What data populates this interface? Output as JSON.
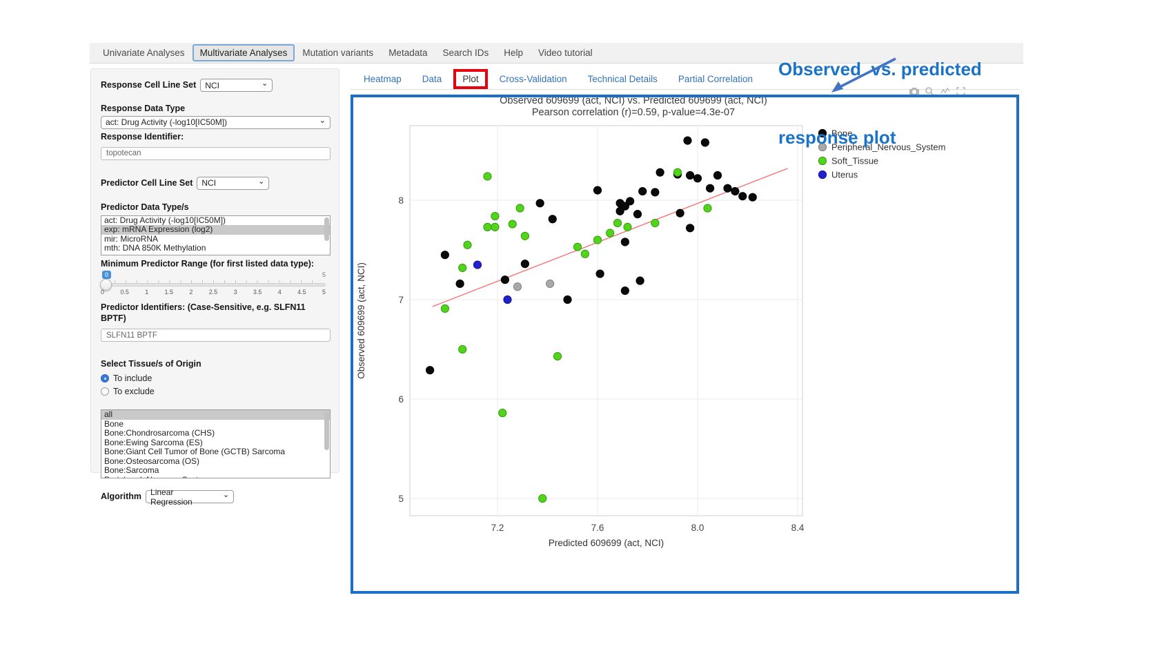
{
  "nav": {
    "items": [
      {
        "label": "Univariate Analyses",
        "active": false
      },
      {
        "label": "Multivariate Analyses",
        "active": true
      },
      {
        "label": "Mutation variants",
        "active": false
      },
      {
        "label": "Metadata",
        "active": false
      },
      {
        "label": "Search IDs",
        "active": false
      },
      {
        "label": "Help",
        "active": false
      },
      {
        "label": "Video tutorial",
        "active": false
      }
    ]
  },
  "sidebar": {
    "response_cell_line_set": {
      "label": "Response Cell Line Set",
      "value": "NCI"
    },
    "response_data_type": {
      "label": "Response Data Type",
      "value": "act: Drug Activity (-log10[IC50M])"
    },
    "response_identifier": {
      "label": "Response Identifier:",
      "value": "topotecan"
    },
    "predictor_cell_line_set": {
      "label": "Predictor Cell Line Set",
      "value": "NCI"
    },
    "predictor_data_types": {
      "label": "Predictor Data Type/s",
      "options": [
        "act: Drug Activity (-log10[IC50M])",
        "exp: mRNA Expression (log2)",
        "mir: MicroRNA",
        "mth: DNA 850K Methylation"
      ],
      "selected": "exp: mRNA Expression (log2)"
    },
    "min_predictor_range": {
      "label": "Minimum Predictor Range (for first listed data type):",
      "value": "0",
      "max_label": "5",
      "scale": [
        "0",
        "0.5",
        "1",
        "1.5",
        "2",
        "2.5",
        "3",
        "3.5",
        "4",
        "4.5",
        "5"
      ]
    },
    "predictor_identifiers": {
      "label": "Predictor Identifiers: (Case-Sensitive, e.g. SLFN11 BPTF)",
      "value": "SLFN11 BPTF"
    },
    "tissue_origin": {
      "label": "Select Tissue/s of Origin",
      "radios": [
        {
          "label": "To include",
          "selected": true
        },
        {
          "label": "To exclude",
          "selected": false
        }
      ],
      "options": [
        "all",
        "Bone",
        "Bone:Chondrosarcoma (CHS)",
        "Bone:Ewing Sarcoma (ES)",
        "Bone:Giant Cell Tumor of Bone (GCTB) Sarcoma",
        "Bone:Osteosarcoma (OS)",
        "Bone:Sarcoma",
        "Peripheral_Nervous_System"
      ],
      "selected": "all"
    },
    "algorithm": {
      "label": "Algorithm",
      "value": "Linear Regression"
    }
  },
  "subtabs": {
    "items": [
      {
        "label": "Heatmap",
        "active": false,
        "highlighted": false
      },
      {
        "label": "Data",
        "active": false,
        "highlighted": false
      },
      {
        "label": "Plot",
        "active": true,
        "highlighted": true
      },
      {
        "label": "Cross-Validation",
        "active": false,
        "highlighted": false
      },
      {
        "label": "Technical Details",
        "active": false,
        "highlighted": false
      },
      {
        "label": "Partial Correlation",
        "active": false,
        "highlighted": false
      }
    ]
  },
  "annotation": {
    "line1": "Observed  vs. predicted",
    "line2": "response plot",
    "color": "#1a73c7"
  },
  "chart_data": {
    "type": "scatter",
    "title": "Observed 609699 (act, NCI) vs. Predicted 609699 (act, NCI)",
    "subtitle": "Pearson correlation (r)=0.59, p-value=4.3e-07",
    "xlabel": "Predicted 609699 (act, NCI)",
    "ylabel": "Observed 609699 (act, NCI)",
    "x_ticks": [
      7.2,
      7.6,
      8.0,
      8.4
    ],
    "y_ticks": [
      5,
      6,
      7,
      8
    ],
    "xlim": [
      6.85,
      8.42
    ],
    "ylim": [
      4.83,
      8.75
    ],
    "grid": true,
    "legend_position": "right",
    "regression_line": {
      "x1": 6.94,
      "y1": 6.93,
      "x2": 8.36,
      "y2": 8.32,
      "color": "#f47c7c"
    },
    "series": [
      {
        "name": "Bone",
        "color": "#0a0a0a",
        "stroke": "#000000",
        "points": [
          [
            7.96,
            8.6
          ],
          [
            8.03,
            8.58
          ],
          [
            7.85,
            8.28
          ],
          [
            7.92,
            8.26
          ],
          [
            7.97,
            8.25
          ],
          [
            8.0,
            8.22
          ],
          [
            8.08,
            8.25
          ],
          [
            7.6,
            8.1
          ],
          [
            7.78,
            8.09
          ],
          [
            7.83,
            8.08
          ],
          [
            8.05,
            8.12
          ],
          [
            8.12,
            8.12
          ],
          [
            8.15,
            8.09
          ],
          [
            8.18,
            8.04
          ],
          [
            8.22,
            8.03
          ],
          [
            7.37,
            7.97
          ],
          [
            7.69,
            7.97
          ],
          [
            7.71,
            7.94
          ],
          [
            7.73,
            7.99
          ],
          [
            7.69,
            7.89
          ],
          [
            7.76,
            7.86
          ],
          [
            7.93,
            7.87
          ],
          [
            7.42,
            7.81
          ],
          [
            7.97,
            7.72
          ],
          [
            7.71,
            7.58
          ],
          [
            6.99,
            7.45
          ],
          [
            7.31,
            7.36
          ],
          [
            7.61,
            7.26
          ],
          [
            7.77,
            7.19
          ],
          [
            7.05,
            7.16
          ],
          [
            7.23,
            7.2
          ],
          [
            7.71,
            7.09
          ],
          [
            7.48,
            7.0
          ],
          [
            6.93,
            6.29
          ]
        ]
      },
      {
        "name": "Peripheral_Nervous_System",
        "color": "#a9a9a9",
        "stroke": "#808080",
        "points": [
          [
            7.28,
            7.13
          ],
          [
            7.41,
            7.16
          ]
        ]
      },
      {
        "name": "Soft_Tissue",
        "color": "#52d41c",
        "stroke": "#2f9e0a",
        "points": [
          [
            7.16,
            8.24
          ],
          [
            7.92,
            8.28
          ],
          [
            8.04,
            7.92
          ],
          [
            7.29,
            7.92
          ],
          [
            7.19,
            7.84
          ],
          [
            7.26,
            7.76
          ],
          [
            7.16,
            7.73
          ],
          [
            7.19,
            7.73
          ],
          [
            7.31,
            7.64
          ],
          [
            7.68,
            7.77
          ],
          [
            7.72,
            7.73
          ],
          [
            7.83,
            7.77
          ],
          [
            7.65,
            7.67
          ],
          [
            7.6,
            7.6
          ],
          [
            7.52,
            7.53
          ],
          [
            7.55,
            7.46
          ],
          [
            7.08,
            7.55
          ],
          [
            7.06,
            7.32
          ],
          [
            6.99,
            6.91
          ],
          [
            7.06,
            6.5
          ],
          [
            7.44,
            6.43
          ],
          [
            7.22,
            5.86
          ],
          [
            7.38,
            5.0
          ]
        ]
      },
      {
        "name": "Uterus",
        "color": "#2222cc",
        "stroke": "#1111a0",
        "points": [
          [
            7.12,
            7.35
          ],
          [
            7.24,
            7.0
          ]
        ]
      }
    ]
  }
}
